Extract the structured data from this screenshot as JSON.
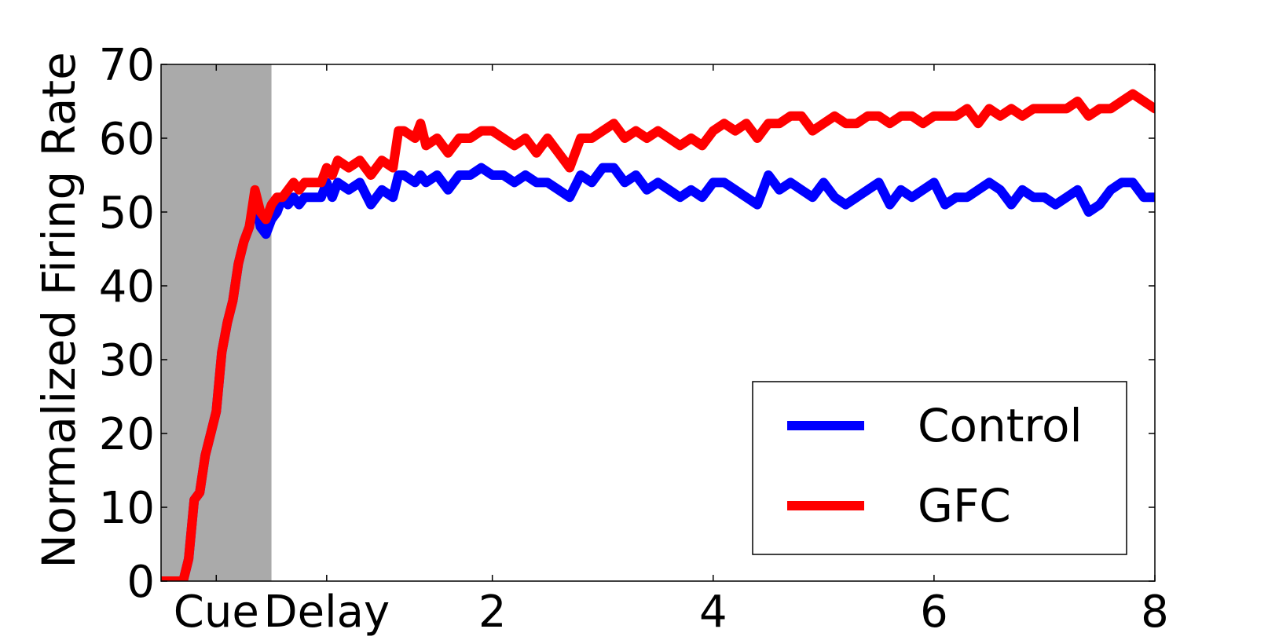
{
  "chart_data": {
    "type": "line",
    "ylabel": "Normalized Firing Rate",
    "ylim": [
      0,
      70
    ],
    "xlim": [
      -1,
      8
    ],
    "y_ticks": [
      0,
      10,
      20,
      30,
      40,
      50,
      60,
      70
    ],
    "x_tick_labels": [
      {
        "x": -0.5,
        "label": "Cue"
      },
      {
        "x": 0.5,
        "label": "Delay"
      },
      {
        "x": 2,
        "label": "2"
      },
      {
        "x": 4,
        "label": "4"
      },
      {
        "x": 6,
        "label": "6"
      },
      {
        "x": 8,
        "label": "8"
      }
    ],
    "shaded_region": {
      "x_start": -1,
      "x_end": 0,
      "color": "#aaaaaa"
    },
    "grid": false,
    "legend_position": "lower-right",
    "series": [
      {
        "name": "Control",
        "color": "#0000ff",
        "x": [
          -1,
          -0.8,
          -0.75,
          -0.7,
          -0.65,
          -0.6,
          -0.55,
          -0.5,
          -0.45,
          -0.4,
          -0.35,
          -0.3,
          -0.25,
          -0.2,
          -0.15,
          -0.1,
          -0.05,
          0.0,
          0.05,
          0.1,
          0.15,
          0.2,
          0.25,
          0.3,
          0.35,
          0.4,
          0.45,
          0.5,
          0.55,
          0.6,
          0.7,
          0.8,
          0.9,
          1.0,
          1.1,
          1.15,
          1.2,
          1.3,
          1.35,
          1.4,
          1.5,
          1.6,
          1.7,
          1.8,
          1.9,
          2.0,
          2.1,
          2.2,
          2.3,
          2.4,
          2.5,
          2.6,
          2.7,
          2.8,
          2.9,
          3.0,
          3.1,
          3.2,
          3.3,
          3.4,
          3.5,
          3.6,
          3.7,
          3.8,
          3.9,
          4.0,
          4.1,
          4.2,
          4.3,
          4.4,
          4.5,
          4.6,
          4.7,
          4.8,
          4.9,
          5.0,
          5.1,
          5.2,
          5.3,
          5.4,
          5.5,
          5.6,
          5.7,
          5.8,
          5.9,
          6.0,
          6.1,
          6.2,
          6.3,
          6.4,
          6.5,
          6.6,
          6.7,
          6.8,
          6.9,
          7.0,
          7.1,
          7.2,
          7.3,
          7.4,
          7.5,
          7.6,
          7.7,
          7.8,
          7.9,
          8.0
        ],
        "values": [
          0,
          0,
          3,
          11,
          12,
          17,
          20,
          23,
          31,
          35,
          38,
          43,
          46,
          48,
          52,
          48,
          47,
          49,
          50,
          52,
          51,
          52,
          51,
          52,
          52,
          52,
          52,
          54,
          52,
          54,
          53,
          54,
          51,
          53,
          52,
          55,
          55,
          54,
          55,
          54,
          55,
          53,
          55,
          55,
          56,
          55,
          55,
          54,
          55,
          54,
          54,
          53,
          52,
          55,
          54,
          56,
          56,
          54,
          55,
          53,
          54,
          53,
          52,
          53,
          52,
          54,
          54,
          53,
          52,
          51,
          55,
          53,
          54,
          53,
          52,
          54,
          52,
          51,
          52,
          53,
          54,
          51,
          53,
          52,
          53,
          54,
          51,
          52,
          52,
          53,
          54,
          53,
          51,
          53,
          52,
          52,
          51,
          52,
          53,
          50,
          51,
          53,
          54,
          54,
          52,
          52
        ],
        "stroke_width": 12
      },
      {
        "name": "GFC",
        "color": "#ff0000",
        "x": [
          -1,
          -0.8,
          -0.75,
          -0.7,
          -0.65,
          -0.6,
          -0.55,
          -0.5,
          -0.45,
          -0.4,
          -0.35,
          -0.3,
          -0.25,
          -0.2,
          -0.15,
          -0.1,
          -0.05,
          0.0,
          0.05,
          0.1,
          0.15,
          0.2,
          0.25,
          0.3,
          0.35,
          0.4,
          0.45,
          0.5,
          0.55,
          0.6,
          0.7,
          0.8,
          0.9,
          1.0,
          1.1,
          1.15,
          1.2,
          1.3,
          1.35,
          1.4,
          1.5,
          1.6,
          1.7,
          1.8,
          1.9,
          2.0,
          2.1,
          2.2,
          2.3,
          2.4,
          2.5,
          2.6,
          2.7,
          2.8,
          2.9,
          3.0,
          3.1,
          3.2,
          3.3,
          3.4,
          3.5,
          3.6,
          3.7,
          3.8,
          3.9,
          4.0,
          4.1,
          4.2,
          4.3,
          4.4,
          4.5,
          4.6,
          4.7,
          4.8,
          4.9,
          5.0,
          5.1,
          5.2,
          5.3,
          5.4,
          5.5,
          5.6,
          5.7,
          5.8,
          5.9,
          6.0,
          6.1,
          6.2,
          6.3,
          6.4,
          6.5,
          6.6,
          6.7,
          6.8,
          6.9,
          7.0,
          7.1,
          7.2,
          7.3,
          7.4,
          7.5,
          7.6,
          7.7,
          7.8,
          7.9,
          8.0
        ],
        "values": [
          0,
          0,
          3,
          11,
          12,
          17,
          20,
          23,
          31,
          35,
          38,
          43,
          46,
          48,
          53,
          50,
          49,
          51,
          52,
          52,
          53,
          54,
          53,
          54,
          54,
          54,
          54,
          56,
          55,
          57,
          56,
          57,
          55,
          57,
          56,
          61,
          61,
          60,
          62,
          59,
          60,
          58,
          60,
          60,
          61,
          61,
          60,
          59,
          60,
          58,
          60,
          58,
          56,
          60,
          60,
          61,
          62,
          60,
          61,
          60,
          61,
          60,
          59,
          60,
          59,
          61,
          62,
          61,
          62,
          60,
          62,
          62,
          63,
          63,
          61,
          62,
          63,
          62,
          62,
          63,
          63,
          62,
          63,
          63,
          62,
          63,
          63,
          63,
          64,
          62,
          64,
          63,
          64,
          63,
          64,
          64,
          64,
          64,
          65,
          63,
          64,
          64,
          65,
          66,
          65,
          64
        ],
        "stroke_width": 12
      }
    ]
  }
}
